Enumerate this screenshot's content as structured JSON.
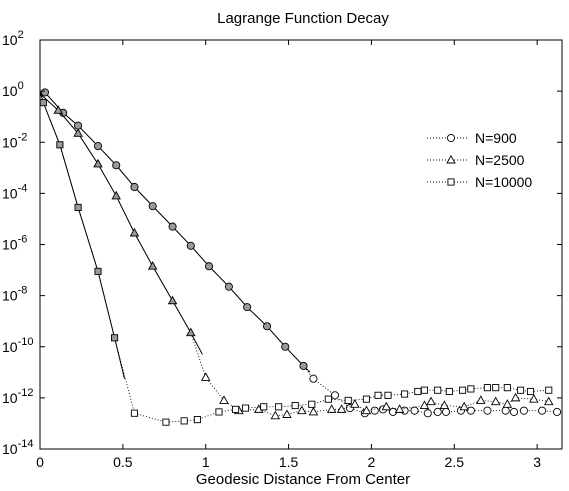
{
  "chart_data": {
    "type": "line",
    "title": "Lagrange Function Decay",
    "xlabel": "Geodesic Distance From Center",
    "ylabel": "",
    "xlim": [
      0,
      3.15
    ],
    "ylim_exponent": [
      -14,
      2
    ],
    "yscale": "log",
    "grid": false,
    "legend_position": "right",
    "x_ticks": [
      {
        "value": 0,
        "label": "0"
      },
      {
        "value": 0.5,
        "label": "0.5"
      },
      {
        "value": 1,
        "label": "1"
      },
      {
        "value": 1.5,
        "label": "1.5"
      },
      {
        "value": 2,
        "label": "2"
      },
      {
        "value": 2.5,
        "label": "2.5"
      },
      {
        "value": 3,
        "label": "3"
      }
    ],
    "y_ticks": [
      {
        "value": 2,
        "base": "10",
        "exp": "2"
      },
      {
        "value": 0,
        "base": "10",
        "exp": "0"
      },
      {
        "value": -2,
        "base": "10",
        "exp": "-2"
      },
      {
        "value": -4,
        "base": "10",
        "exp": "-4"
      },
      {
        "value": -6,
        "base": "10",
        "exp": "-6"
      },
      {
        "value": -8,
        "base": "10",
        "exp": "-8"
      },
      {
        "value": -10,
        "base": "10",
        "exp": "-10"
      },
      {
        "value": -12,
        "base": "10",
        "exp": "-12"
      },
      {
        "value": -14,
        "base": "10",
        "exp": "-14"
      }
    ],
    "series": [
      {
        "name": "N=900",
        "marker": "circle",
        "solid_x": [
          0.0,
          0.03,
          0.14,
          0.23,
          0.35,
          0.46,
          0.57,
          0.68,
          0.8,
          0.91,
          1.02,
          1.14,
          1.25,
          1.37,
          1.48,
          1.59,
          1.63
        ],
        "solid_y": [
          -0.2,
          -0.05,
          -0.85,
          -1.35,
          -2.15,
          -2.9,
          -3.75,
          -4.5,
          -5.3,
          -6.05,
          -6.85,
          -7.65,
          -8.45,
          -9.2,
          -10.0,
          -10.75,
          -11.0
        ],
        "points": [
          [
            0.03,
            -0.05
          ],
          [
            0.14,
            -0.85
          ],
          [
            0.23,
            -1.35
          ],
          [
            0.35,
            -2.15
          ],
          [
            0.46,
            -2.9
          ],
          [
            0.57,
            -3.75
          ],
          [
            0.68,
            -4.5
          ],
          [
            0.8,
            -5.3
          ],
          [
            0.91,
            -6.05
          ],
          [
            1.02,
            -6.85
          ],
          [
            1.14,
            -7.65
          ],
          [
            1.25,
            -8.45
          ],
          [
            1.37,
            -9.2
          ],
          [
            1.48,
            -10.0
          ],
          [
            1.59,
            -10.75
          ],
          [
            1.65,
            -11.25
          ],
          [
            1.78,
            -11.9
          ],
          [
            1.87,
            -12.4
          ],
          [
            1.96,
            -12.6
          ],
          [
            2.02,
            -12.5
          ],
          [
            2.07,
            -12.45
          ],
          [
            2.13,
            -12.55
          ],
          [
            2.2,
            -12.5
          ],
          [
            2.26,
            -12.5
          ],
          [
            2.34,
            -12.6
          ],
          [
            2.4,
            -12.55
          ],
          [
            2.45,
            -12.55
          ],
          [
            2.54,
            -12.5
          ],
          [
            2.6,
            -12.5
          ],
          [
            2.7,
            -12.5
          ],
          [
            2.81,
            -12.5
          ],
          [
            2.86,
            -12.55
          ],
          [
            2.92,
            -12.5
          ],
          [
            3.03,
            -12.5
          ],
          [
            3.12,
            -12.55
          ]
        ]
      },
      {
        "name": "N=2500",
        "marker": "triangle",
        "solid_x": [
          0.0,
          0.11,
          0.23,
          0.35,
          0.46,
          0.57,
          0.68,
          0.8,
          0.91,
          0.98
        ],
        "solid_y": [
          -0.1,
          -0.75,
          -1.65,
          -2.85,
          -4.1,
          -5.55,
          -6.85,
          -8.2,
          -9.45,
          -10.3
        ],
        "points": [
          [
            0.11,
            -0.75
          ],
          [
            0.23,
            -1.65
          ],
          [
            0.35,
            -2.85
          ],
          [
            0.46,
            -4.1
          ],
          [
            0.57,
            -5.55
          ],
          [
            0.68,
            -6.85
          ],
          [
            0.8,
            -8.2
          ],
          [
            0.91,
            -9.45
          ],
          [
            1.0,
            -11.2
          ],
          [
            1.11,
            -12.1
          ],
          [
            1.2,
            -12.5
          ],
          [
            1.32,
            -12.45
          ],
          [
            1.42,
            -12.7
          ],
          [
            1.49,
            -12.65
          ],
          [
            1.58,
            -12.5
          ],
          [
            1.65,
            -12.55
          ],
          [
            1.76,
            -12.45
          ],
          [
            1.82,
            -12.45
          ],
          [
            1.9,
            -12.25
          ],
          [
            1.97,
            -12.5
          ],
          [
            2.09,
            -12.35
          ],
          [
            2.17,
            -12.45
          ],
          [
            2.32,
            -12.3
          ],
          [
            2.36,
            -12.15
          ],
          [
            2.44,
            -12.3
          ],
          [
            2.56,
            -12.35
          ],
          [
            2.66,
            -12.1
          ],
          [
            2.75,
            -12.15
          ],
          [
            2.82,
            -12.25
          ],
          [
            2.87,
            -12.0
          ],
          [
            2.98,
            -12.05
          ],
          [
            3.07,
            -12.15
          ]
        ]
      },
      {
        "name": "N=10000",
        "marker": "square",
        "solid_x": [
          0.0,
          0.02,
          0.12,
          0.23,
          0.35,
          0.45,
          0.51
        ],
        "solid_y": [
          0.0,
          -0.45,
          -2.1,
          -4.55,
          -7.05,
          -9.65,
          -11.25
        ],
        "points": [
          [
            0.02,
            -0.45
          ],
          [
            0.12,
            -2.1
          ],
          [
            0.23,
            -4.55
          ],
          [
            0.35,
            -7.05
          ],
          [
            0.45,
            -9.65
          ],
          [
            0.57,
            -12.6
          ],
          [
            0.76,
            -12.95
          ],
          [
            0.87,
            -12.9
          ],
          [
            0.95,
            -12.85
          ],
          [
            1.08,
            -12.55
          ],
          [
            1.18,
            -12.45
          ],
          [
            1.24,
            -12.4
          ],
          [
            1.35,
            -12.35
          ],
          [
            1.44,
            -12.35
          ],
          [
            1.54,
            -12.3
          ],
          [
            1.64,
            -12.25
          ],
          [
            1.74,
            -12.05
          ],
          [
            1.86,
            -12.1
          ],
          [
            1.97,
            -12.05
          ],
          [
            2.04,
            -11.9
          ],
          [
            2.1,
            -11.9
          ],
          [
            2.2,
            -11.85
          ],
          [
            2.28,
            -11.75
          ],
          [
            2.32,
            -11.7
          ],
          [
            2.4,
            -11.7
          ],
          [
            2.47,
            -11.75
          ],
          [
            2.55,
            -11.7
          ],
          [
            2.6,
            -11.65
          ],
          [
            2.7,
            -11.6
          ],
          [
            2.75,
            -11.6
          ],
          [
            2.82,
            -11.6
          ],
          [
            2.9,
            -11.7
          ],
          [
            2.96,
            -11.75
          ],
          [
            3.07,
            -11.7
          ]
        ]
      }
    ]
  },
  "colors": {
    "axis": "#000000",
    "line": "#000000",
    "filled_marker": "#9a9a9a",
    "open_marker": "#ffffff"
  }
}
